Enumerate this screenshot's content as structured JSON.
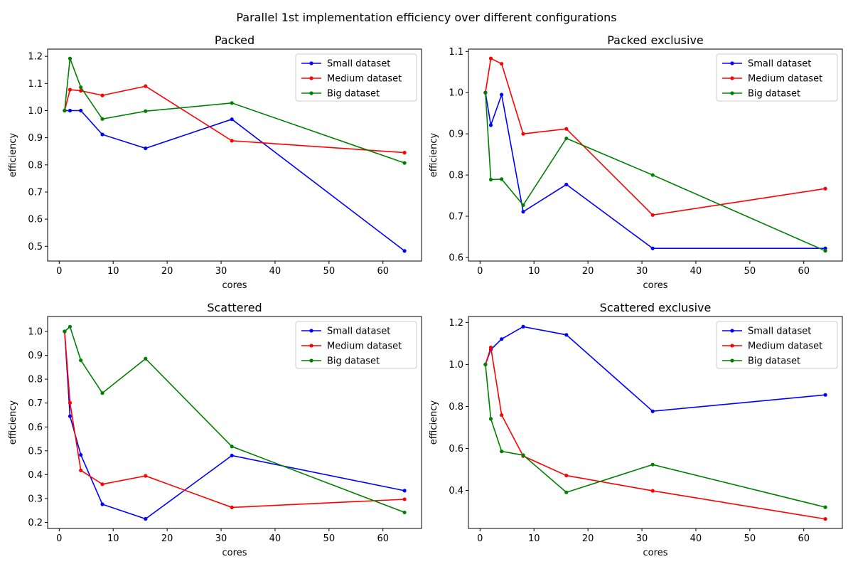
{
  "figure": {
    "title": "Parallel 1st implementation efficiency over different configurations"
  },
  "chart_data": [
    {
      "type": "line",
      "title": "Packed",
      "xlabel": "cores",
      "ylabel": "efficiency",
      "xlim": [
        -2.15,
        67.15
      ],
      "ylim": [
        0.4457,
        1.2267
      ],
      "xticks": [
        0,
        10,
        20,
        30,
        40,
        50,
        60
      ],
      "yticks": [
        0.5,
        0.6,
        0.7,
        0.8,
        0.9,
        1.0,
        1.1,
        1.2
      ],
      "x": [
        1,
        2,
        4,
        8,
        16,
        32,
        64
      ],
      "legend_position": "upper right",
      "series": [
        {
          "name": "Small dataset",
          "color": "#0000ff",
          "values": [
            1.0,
            1.0,
            1.0,
            0.912,
            0.861,
            0.968,
            0.483
          ]
        },
        {
          "name": "Medium dataset",
          "color": "#ff0000",
          "values": [
            1.0,
            1.077,
            1.073,
            1.056,
            1.09,
            0.889,
            0.845
          ]
        },
        {
          "name": "Big dataset",
          "color": "#008000",
          "values": [
            1.0,
            1.192,
            1.086,
            0.969,
            0.998,
            1.028,
            0.807
          ]
        }
      ]
    },
    {
      "type": "line",
      "title": "Packed exclusive",
      "xlabel": "cores",
      "ylabel": "efficiency",
      "xlim": [
        -2.15,
        67.15
      ],
      "ylim": [
        0.5913,
        1.1057
      ],
      "xticks": [
        0,
        10,
        20,
        30,
        40,
        50,
        60
      ],
      "yticks": [
        0.6,
        0.7,
        0.8,
        0.9,
        1.0,
        1.1
      ],
      "x": [
        1,
        2,
        4,
        8,
        16,
        32,
        64
      ],
      "legend_position": "upper right",
      "series": [
        {
          "name": "Small dataset",
          "color": "#0000ff",
          "values": [
            1.0,
            0.921,
            0.995,
            0.711,
            0.777,
            0.622,
            0.622
          ]
        },
        {
          "name": "Medium dataset",
          "color": "#ff0000",
          "values": [
            1.0,
            1.083,
            1.07,
            0.9,
            0.912,
            0.703,
            0.767
          ]
        },
        {
          "name": "Big dataset",
          "color": "#008000",
          "values": [
            1.0,
            0.789,
            0.79,
            0.727,
            0.889,
            0.8,
            0.616
          ]
        }
      ]
    },
    {
      "type": "line",
      "title": "Scattered",
      "xlabel": "cores",
      "ylabel": "efficiency",
      "xlim": [
        -2.15,
        67.15
      ],
      "ylim": [
        0.1747,
        1.0626
      ],
      "xticks": [
        0,
        10,
        20,
        30,
        40,
        50,
        60
      ],
      "yticks": [
        0.2,
        0.3,
        0.4,
        0.5,
        0.6,
        0.7,
        0.8,
        0.9,
        1.0
      ],
      "x": [
        1,
        2,
        4,
        8,
        16,
        32,
        64
      ],
      "legend_position": "upper right",
      "series": [
        {
          "name": "Small dataset",
          "color": "#0000ff",
          "values": [
            1.0,
            0.645,
            0.483,
            0.276,
            0.215,
            0.48,
            0.333
          ]
        },
        {
          "name": "Medium dataset",
          "color": "#ff0000",
          "values": [
            1.0,
            0.701,
            0.418,
            0.36,
            0.395,
            0.263,
            0.297
          ]
        },
        {
          "name": "Big dataset",
          "color": "#008000",
          "values": [
            1.0,
            1.02,
            0.879,
            0.742,
            0.886,
            0.518,
            0.242
          ]
        }
      ]
    },
    {
      "type": "line",
      "title": "Scattered exclusive",
      "xlabel": "cores",
      "ylabel": "efficiency",
      "xlim": [
        -2.15,
        67.15
      ],
      "ylim": [
        0.2188,
        1.2284
      ],
      "xticks": [
        0,
        10,
        20,
        30,
        40,
        50,
        60
      ],
      "yticks": [
        0.4,
        0.6,
        0.8,
        1.0,
        1.2
      ],
      "x": [
        1,
        2,
        4,
        8,
        16,
        32,
        64
      ],
      "legend_position": "upper right",
      "series": [
        {
          "name": "Small dataset",
          "color": "#0000ff",
          "values": [
            1.0,
            1.071,
            1.121,
            1.18,
            1.141,
            0.777,
            0.855
          ]
        },
        {
          "name": "Medium dataset",
          "color": "#ff0000",
          "values": [
            1.0,
            1.081,
            0.759,
            0.564,
            0.471,
            0.398,
            0.264
          ]
        },
        {
          "name": "Big dataset",
          "color": "#008000",
          "values": [
            1.0,
            0.741,
            0.586,
            0.568,
            0.391,
            0.523,
            0.32
          ]
        }
      ]
    }
  ]
}
